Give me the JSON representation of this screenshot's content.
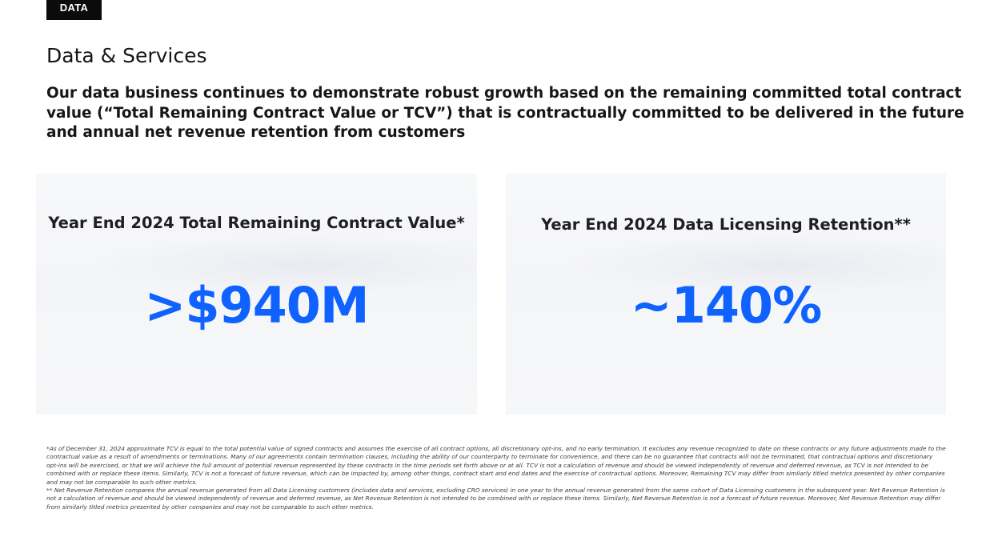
{
  "tag": "DATA",
  "title": "Data & Services",
  "subtitle": "Our data business continues to demonstrate robust growth based on the remaining committed total contract value (“Total Remaining Contract Value or TCV”) that is contractually committed to be delivered in the future and annual net revenue retention from customers",
  "cards": [
    {
      "label": "Year End 2024 Total Remaining Contract Value*",
      "value": ">$940M"
    },
    {
      "label": "Year End 2024 Data Licensing Retention**",
      "value": "~140%"
    }
  ],
  "colors": {
    "accent": "#0f62fe",
    "tag_background": "#0b0b0b",
    "card_background": "#f5f6f8"
  },
  "footnotes": [
    "*As of December 31, 2024 approximate TCV is equal to the total potential value of signed contracts and assumes the exercise of all contract options, all discretionary opt-ins, and no early termination. It excludes any revenue recognized to date on these contracts or any future adjustments made to the contractual value as a result of amendments or terminations. Many of our agreements contain termination clauses, including the ability of our counterparty to terminate for convenience, and there can be no guarantee that contracts will not be terminated, that contractual options and discretionary opt-ins will be exercised, or that we will achieve the full amount of potential revenue represented by these contracts in the time periods set forth above or at all. TCV is not a calculation of revenue and should be viewed independently of revenue and deferred revenue, as TCV is not intended to be combined with or replace these items. Similarly, TCV is not a forecast of future revenue, which can be impacted by, among other things, contract start and end dates and the exercise of contractual options. Moreover, Remaining TCV may differ from similarly titled metrics presented by other companies and may not be comparable to such other metrics.",
    "** Net Revenue Retention compares the annual revenue generated from all Data Licensing customers (includes data and services, excluding CRO services) in one year to the annual revenue generated from the same cohort of Data Licensing customers in the subsequent year. Net Revenue Retention is not a calculation of revenue and should be viewed independently of revenue and deferred revenue, as Net Revenue Retention is not intended to be combined with or replace these items. Similarly, Net Revenue Retention is not a forecast of future revenue. Moreover, Net Revenue Retention may differ from similarly titled metrics presented by other companies and may not be comparable to such other metrics."
  ]
}
